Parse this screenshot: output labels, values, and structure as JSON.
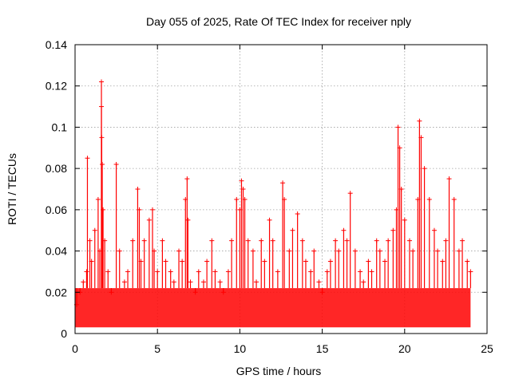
{
  "chart_data": {
    "type": "scatter",
    "title": "Day 055 of 2025, Rate Of TEC Index for receiver nply",
    "xlabel": "GPS time / hours",
    "ylabel": "ROTI / TECUs",
    "xlim": [
      0,
      25
    ],
    "ylim": [
      0,
      0.14
    ],
    "xticks": [
      0,
      5,
      10,
      15,
      20,
      25
    ],
    "xtick_labels": [
      "0",
      "5",
      "10",
      "15",
      "20",
      "25"
    ],
    "yticks": [
      0,
      0.02,
      0.04,
      0.06,
      0.08,
      0.1,
      0.12,
      0.14
    ],
    "ytick_labels": [
      "0",
      "0.02",
      "0.04",
      "0.06",
      "0.08",
      "0.1",
      "0.12",
      "0.14"
    ],
    "grid": true,
    "marker": "plus",
    "color": "#ff0000",
    "series": [
      {
        "name": "ROTI",
        "x": [
          0.1,
          0.3,
          0.5,
          0.7,
          0.75,
          0.9,
          1.0,
          1.2,
          1.4,
          1.5,
          1.6,
          1.6,
          1.62,
          1.65,
          1.7,
          1.8,
          2.0,
          2.2,
          2.5,
          2.7,
          3.0,
          3.2,
          3.5,
          3.8,
          3.9,
          4.0,
          4.2,
          4.5,
          4.7,
          4.8,
          5.0,
          5.3,
          5.5,
          5.8,
          6.0,
          6.3,
          6.5,
          6.7,
          6.8,
          6.85,
          7.0,
          7.3,
          7.5,
          7.8,
          8.0,
          8.3,
          8.5,
          8.8,
          9.0,
          9.3,
          9.5,
          9.8,
          10.0,
          10.1,
          10.2,
          10.3,
          10.5,
          10.8,
          11.0,
          11.3,
          11.5,
          11.8,
          12.0,
          12.3,
          12.6,
          12.7,
          13.0,
          13.2,
          13.5,
          13.8,
          14.0,
          14.3,
          14.5,
          14.8,
          15.0,
          15.3,
          15.5,
          15.8,
          16.0,
          16.3,
          16.5,
          16.7,
          17.0,
          17.3,
          17.5,
          17.8,
          18.0,
          18.3,
          18.5,
          18.8,
          19.0,
          19.3,
          19.5,
          19.6,
          19.7,
          19.8,
          20.0,
          20.3,
          20.5,
          20.8,
          20.9,
          21.0,
          21.2,
          21.5,
          21.8,
          22.0,
          22.3,
          22.5,
          22.7,
          23.0,
          23.3,
          23.5,
          23.8,
          24.0
        ],
        "y": [
          0.014,
          0.02,
          0.025,
          0.03,
          0.085,
          0.045,
          0.035,
          0.05,
          0.065,
          0.04,
          0.122,
          0.11,
          0.095,
          0.082,
          0.06,
          0.045,
          0.03,
          0.02,
          0.082,
          0.04,
          0.025,
          0.03,
          0.045,
          0.07,
          0.06,
          0.035,
          0.045,
          0.055,
          0.06,
          0.04,
          0.03,
          0.045,
          0.035,
          0.03,
          0.025,
          0.04,
          0.035,
          0.065,
          0.075,
          0.055,
          0.025,
          0.02,
          0.03,
          0.025,
          0.035,
          0.045,
          0.03,
          0.025,
          0.02,
          0.03,
          0.045,
          0.065,
          0.06,
          0.074,
          0.07,
          0.065,
          0.045,
          0.04,
          0.025,
          0.045,
          0.035,
          0.055,
          0.045,
          0.03,
          0.073,
          0.065,
          0.04,
          0.05,
          0.058,
          0.045,
          0.035,
          0.03,
          0.04,
          0.025,
          0.02,
          0.03,
          0.035,
          0.045,
          0.04,
          0.05,
          0.045,
          0.068,
          0.04,
          0.03,
          0.025,
          0.035,
          0.03,
          0.045,
          0.04,
          0.035,
          0.045,
          0.05,
          0.06,
          0.1,
          0.09,
          0.07,
          0.055,
          0.045,
          0.04,
          0.065,
          0.103,
          0.095,
          0.08,
          0.065,
          0.05,
          0.04,
          0.035,
          0.045,
          0.075,
          0.065,
          0.04,
          0.045,
          0.035,
          0.03
        ]
      }
    ],
    "band": {
      "name": "dense-background",
      "x_start": 0,
      "x_end": 24,
      "y_low": 0.003,
      "y_high": 0.022
    }
  }
}
